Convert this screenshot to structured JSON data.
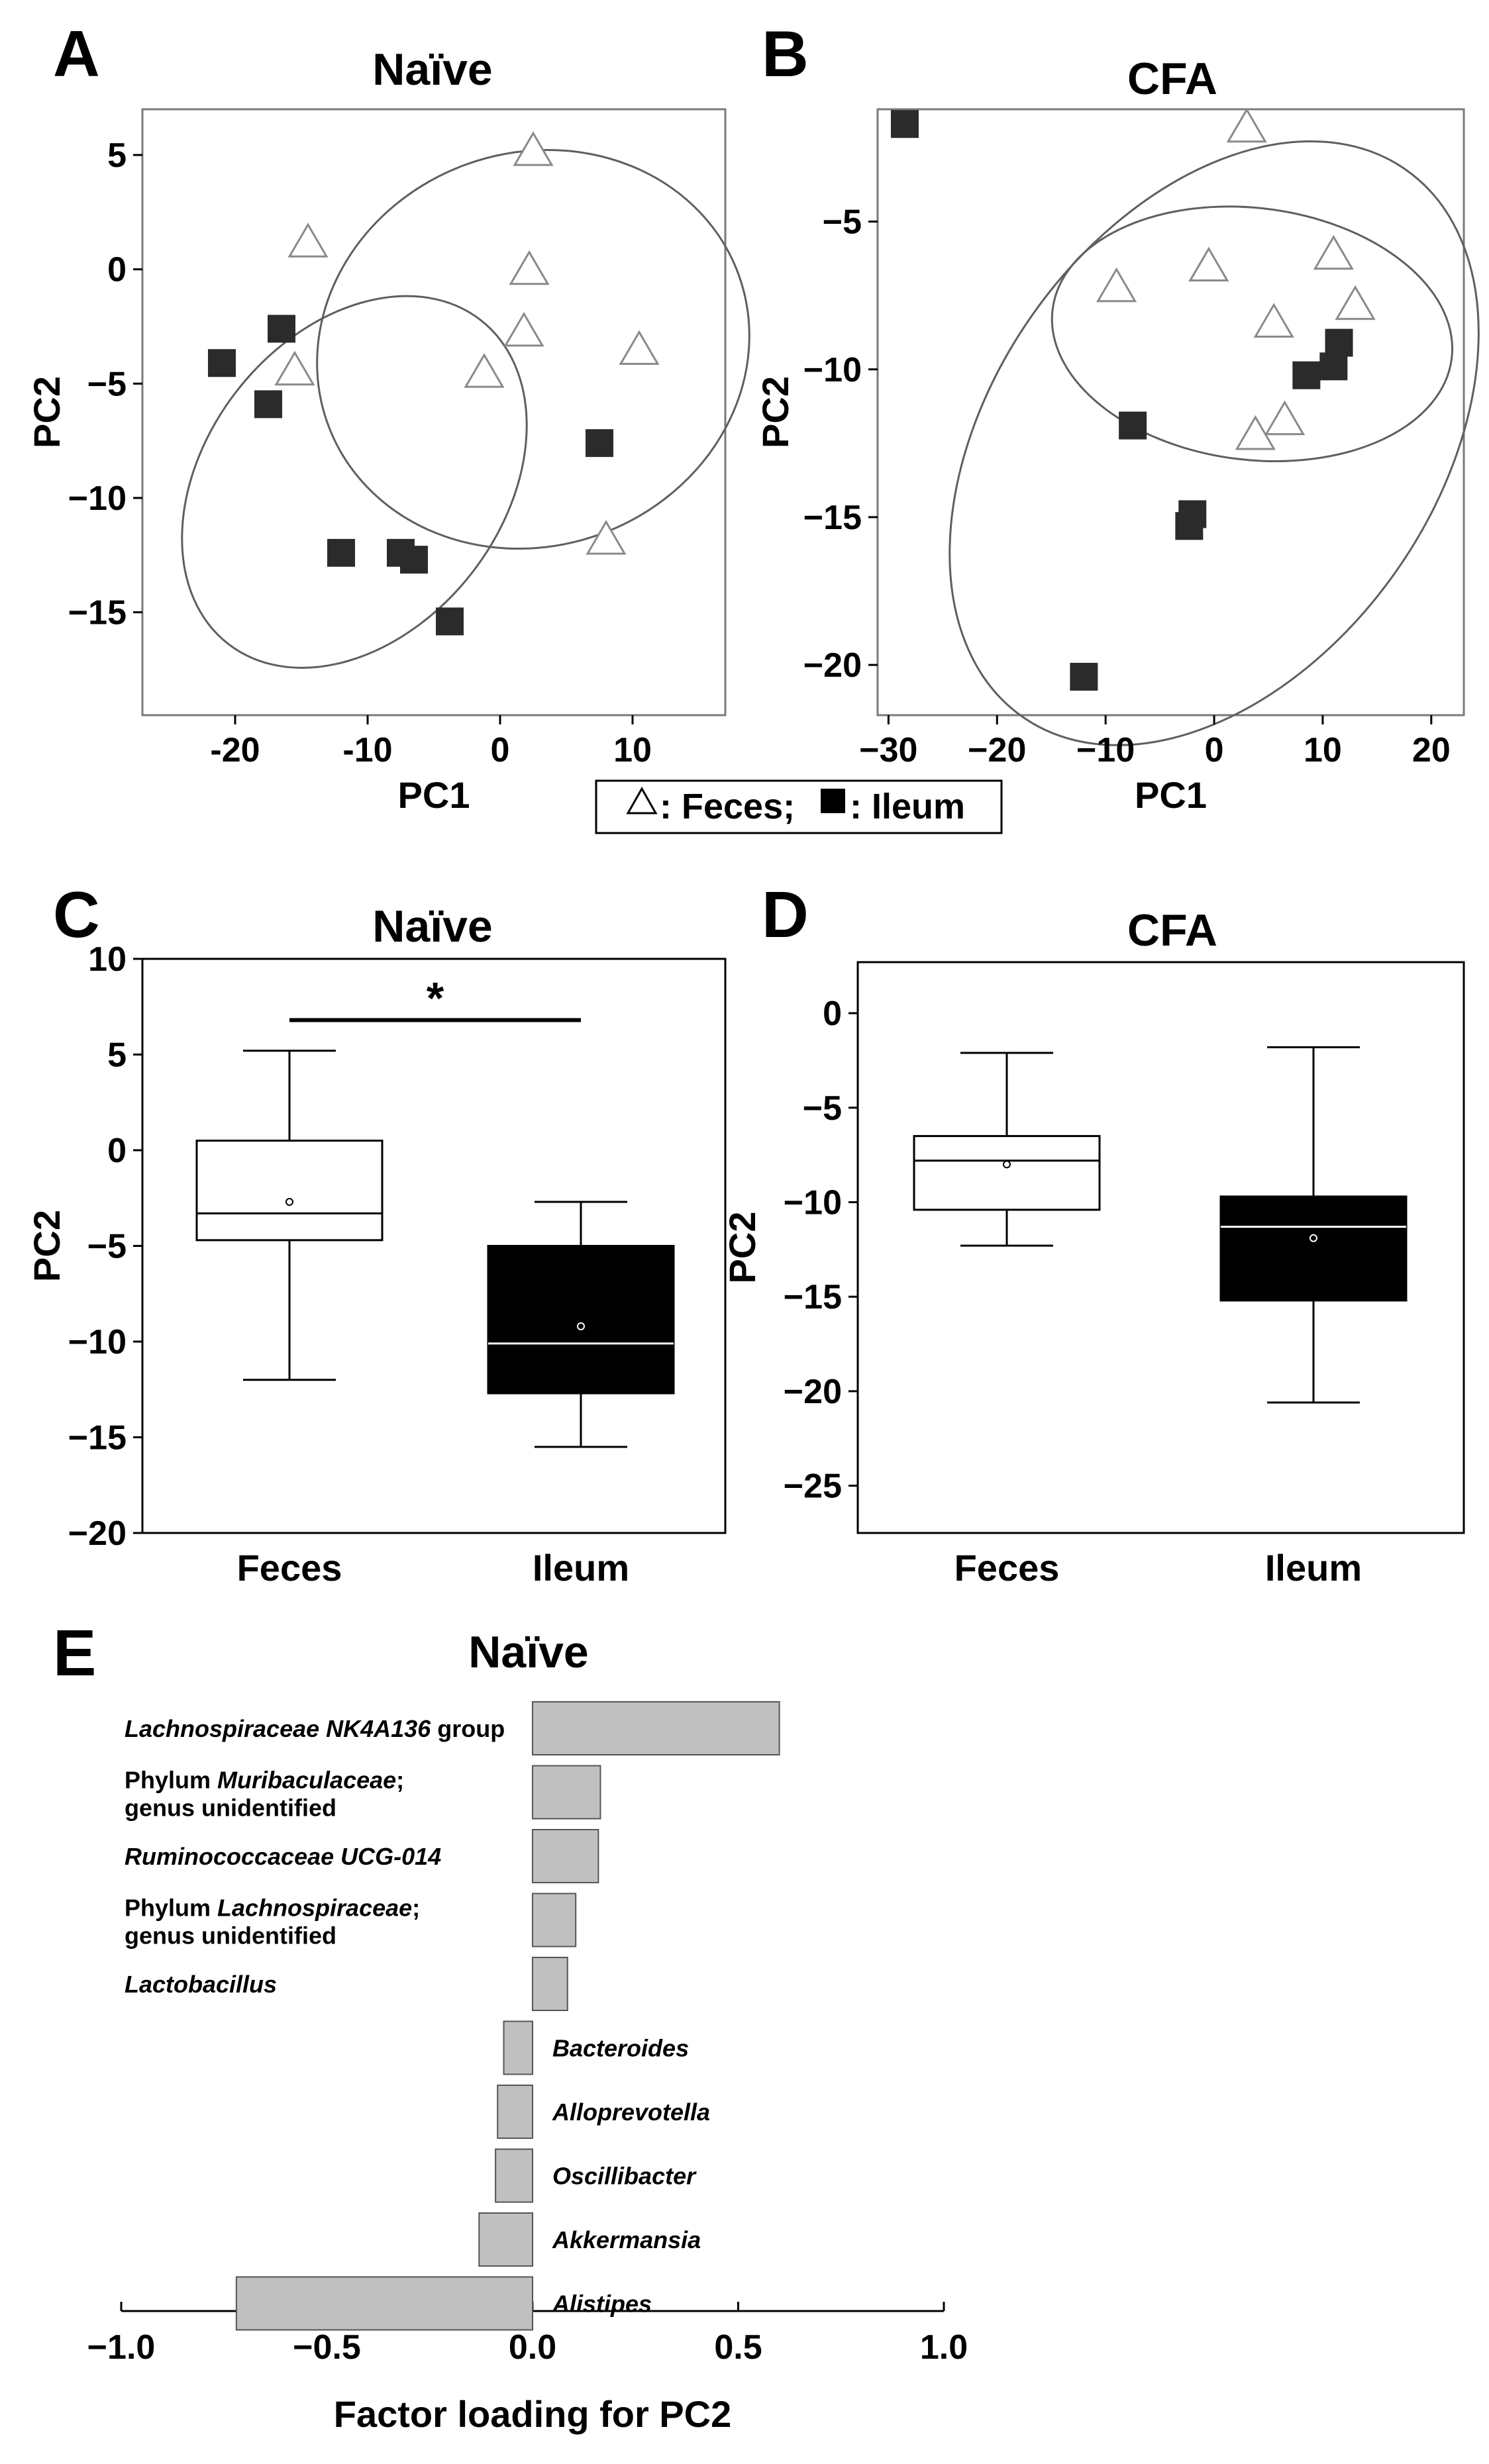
{
  "legend": {
    "feces_label": ": Feces;",
    "ileum_label": ": Ileum"
  },
  "chart_data": [
    {
      "type": "scatter",
      "panel_letter": "A",
      "title": "Naïve",
      "xlabel": "PC1",
      "ylabel": "PC2",
      "xlim": [
        -27,
        17
      ],
      "ylim": [
        -19.5,
        7
      ],
      "xticks": [
        -20,
        -10,
        0,
        10
      ],
      "yticks": [
        5,
        0,
        -5,
        -10,
        -15
      ],
      "xtick_labels": [
        "-20",
        "-10",
        "0",
        "10"
      ],
      "ytick_labels": [
        "5",
        "0",
        "−5",
        "−10",
        "−15"
      ],
      "series": [
        {
          "name": "Feces",
          "marker": "open-triangle",
          "points": [
            [
              2.5,
              5.2
            ],
            [
              -14.5,
              1.2
            ],
            [
              2.2,
              0
            ],
            [
              1.8,
              -2.7
            ],
            [
              -1.2,
              -4.5
            ],
            [
              10.5,
              -3.5
            ],
            [
              -15.5,
              -4.4
            ],
            [
              8,
              -11.8
            ]
          ]
        },
        {
          "name": "Ileum",
          "marker": "filled-square",
          "points": [
            [
              -21,
              -4.1
            ],
            [
              -16.5,
              -2.6
            ],
            [
              -17.5,
              -5.9
            ],
            [
              -12,
              -12.4
            ],
            [
              -7.5,
              -12.4
            ],
            [
              -6.5,
              -12.7
            ],
            [
              -3.8,
              -15.4
            ],
            [
              7.5,
              -7.6
            ]
          ]
        }
      ],
      "ellipses": [
        {
          "group": "Feces",
          "center": [
            2.5,
            -3.5
          ],
          "semi_axes": [
            16.5,
            8.6
          ],
          "rotation_deg": -20
        },
        {
          "group": "Ileum",
          "center": [
            -11,
            -9.3
          ],
          "semi_axes": [
            15.5,
            6.5
          ],
          "rotation_deg": -52
        }
      ]
    },
    {
      "type": "scatter",
      "panel_letter": "B",
      "title": "CFA",
      "xlabel": "PC1",
      "ylabel": "PC2",
      "xlim": [
        -31,
        23
      ],
      "ylim": [
        -21.7,
        -1.2
      ],
      "xticks": [
        -30,
        -20,
        -10,
        0,
        10,
        20
      ],
      "yticks": [
        -5,
        -10,
        -15,
        -20
      ],
      "xtick_labels": [
        "−30",
        "−20",
        "−10",
        "0",
        "10",
        "20"
      ],
      "ytick_labels": [
        "−5",
        "−10",
        "−15",
        "−20"
      ],
      "series": [
        {
          "name": "Feces",
          "marker": "open-triangle",
          "points": [
            [
              3,
              -1.8
            ],
            [
              -9,
              -7.2
            ],
            [
              -0.5,
              -6.5
            ],
            [
              11,
              -6.1
            ],
            [
              13,
              -7.8
            ],
            [
              5.5,
              -8.4
            ],
            [
              6.5,
              -11.7
            ],
            [
              3.8,
              -12.2
            ]
          ]
        },
        {
          "name": "Ileum",
          "marker": "filled-square",
          "points": [
            [
              -28.5,
              -1.7
            ],
            [
              -7.5,
              -11.9
            ],
            [
              -2.3,
              -15.3
            ],
            [
              -2,
              -14.9
            ],
            [
              -12,
              -20.4
            ],
            [
              11.5,
              -9.1
            ],
            [
              11,
              -9.9
            ],
            [
              8.5,
              -10.2
            ]
          ]
        }
      ],
      "ellipses": [
        {
          "group": "Feces",
          "center": [
            3.5,
            -8.8
          ],
          "semi_axes": [
            11.6,
            6.8
          ],
          "rotation_deg": -83
        },
        {
          "group": "Ileum",
          "center": [
            0,
            -12.5
          ],
          "semi_axes": [
            20.5,
            11.3
          ],
          "rotation_deg": 35
        }
      ]
    },
    {
      "type": "box",
      "panel_letter": "C",
      "title": "Naïve",
      "ylabel": "PC2",
      "ylim": [
        -20,
        10
      ],
      "yticks": [
        10,
        5,
        0,
        -5,
        -10,
        -15,
        -20
      ],
      "ytick_labels": [
        "10",
        "5",
        "0",
        "−5",
        "−10",
        "−15",
        "−20"
      ],
      "categories": [
        "Feces",
        "Ileum"
      ],
      "boxes": [
        {
          "name": "Feces",
          "whisker_low": -12,
          "q1": -4.7,
          "median": -3.3,
          "q3": 0.5,
          "whisker_high": 5.2,
          "mean": -2.7,
          "fill": "#ffffff"
        },
        {
          "name": "Ileum",
          "whisker_low": -15.5,
          "q1": -12.7,
          "median": -10.1,
          "q3": -5,
          "whisker_high": -2.7,
          "mean": -9.2,
          "fill": "#000000"
        }
      ],
      "significance": {
        "label": "*",
        "y": 6.8
      }
    },
    {
      "type": "box",
      "panel_letter": "D",
      "title": "CFA",
      "ylabel": "PC2",
      "ylim": [
        -27.5,
        2.7
      ],
      "yticks": [
        0,
        -5,
        -10,
        -15,
        -20,
        -25
      ],
      "ytick_labels": [
        "0",
        "−5",
        "−10",
        "−15",
        "−20",
        "−25"
      ],
      "categories": [
        "Feces",
        "Ileum"
      ],
      "boxes": [
        {
          "name": "Feces",
          "whisker_low": -12.3,
          "q1": -10.4,
          "median": -7.8,
          "q3": -6.5,
          "whisker_high": -2.1,
          "mean": -8,
          "fill": "#ffffff"
        },
        {
          "name": "Ileum",
          "whisker_low": -20.6,
          "q1": -15.2,
          "median": -11.3,
          "q3": -9.7,
          "whisker_high": -1.8,
          "mean": -11.9,
          "fill": "#000000"
        }
      ]
    },
    {
      "type": "bar",
      "orientation": "horizontal",
      "panel_letter": "E",
      "title": "Naïve",
      "xlabel": "Factor loading for PC2",
      "xlim": [
        -1,
        1
      ],
      "xticks": [
        -1,
        -0.5,
        0,
        0.5,
        1
      ],
      "xtick_labels": [
        "−1.0",
        "−0.5",
        "0.0",
        "0.5",
        "1.0"
      ],
      "categories": [
        {
          "parts": [
            {
              "text": "Lachnospiraceae NK4A136",
              "italic": true
            },
            {
              "text": " group",
              "italic": false
            }
          ]
        },
        {
          "line1": [
            {
              "text": "Phylum ",
              "italic": false
            },
            {
              "text": "Muribaculaceae",
              "italic": true
            },
            {
              "text": ";",
              "italic": false
            }
          ],
          "line2": "genus unidentified"
        },
        {
          "parts": [
            {
              "text": "Ruminococcaceae UCG-014",
              "italic": true
            }
          ]
        },
        {
          "line1": [
            {
              "text": "Phylum ",
              "italic": false
            },
            {
              "text": "Lachnospiraceae",
              "italic": true
            },
            {
              "text": ";",
              "italic": false
            }
          ],
          "line2": "genus unidentified"
        },
        {
          "parts": [
            {
              "text": "Lactobacillus",
              "italic": true
            }
          ]
        },
        {
          "parts": [
            {
              "text": "Bacteroides",
              "italic": true
            }
          ]
        },
        {
          "parts": [
            {
              "text": "Alloprevotella",
              "italic": true
            }
          ]
        },
        {
          "parts": [
            {
              "text": "Oscillibacter",
              "italic": true
            }
          ]
        },
        {
          "parts": [
            {
              "text": "Akkermansia",
              "italic": true
            }
          ]
        },
        {
          "parts": [
            {
              "text": "Alistipes",
              "italic": true
            }
          ]
        }
      ],
      "values": [
        0.6,
        0.165,
        0.16,
        0.105,
        0.085,
        -0.07,
        -0.085,
        -0.09,
        -0.13,
        -0.72
      ],
      "bar_color": "#c0c0c0"
    }
  ]
}
